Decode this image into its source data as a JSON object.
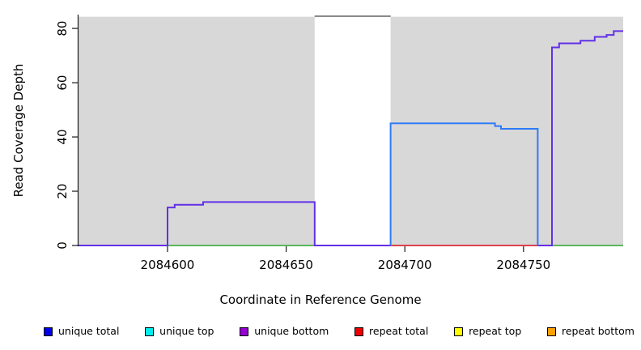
{
  "chart_data": {
    "type": "line",
    "subtype": "step-coverage-plot",
    "title": "",
    "xlabel": "Coordinate in Reference Genome",
    "ylabel": "Read Coverage Depth",
    "xlim": [
      2084562.5,
      2084792
    ],
    "ylim": [
      0,
      85.4
    ],
    "x_ticks": [
      {
        "value": 2084600,
        "label": "2084600"
      },
      {
        "value": 2084650,
        "label": "2084650"
      },
      {
        "value": 2084700,
        "label": "2084700"
      },
      {
        "value": 2084750,
        "label": "2084750"
      }
    ],
    "y_ticks": [
      {
        "value": 0,
        "label": "0"
      },
      {
        "value": 20,
        "label": "20"
      },
      {
        "value": 40,
        "label": "40"
      },
      {
        "value": 60,
        "label": "60"
      },
      {
        "value": 80,
        "label": "80"
      }
    ],
    "grid": false,
    "panel_bg": "#d8d8d8",
    "panel_y_max": 84.3,
    "axis_color": "#1a1a1a",
    "no_coverage_gap": {
      "x0": 2084662,
      "x1": 2084694,
      "fill": "#ffffff",
      "top_y": 84.5,
      "top_line_color": "#8a8a8a"
    },
    "series": [
      {
        "name": "baseline-left-green",
        "color": "#5cb85c",
        "points": [
          [
            2084600,
            0
          ],
          [
            2084662,
            0
          ]
        ]
      },
      {
        "name": "baseline-right-green",
        "color": "#5cb85c",
        "points": [
          [
            2084762,
            0
          ],
          [
            2084792,
            0
          ]
        ]
      },
      {
        "name": "unique-bottom-steps",
        "color": "#6130e8",
        "points": [
          [
            2084562.5,
            0
          ],
          [
            2084600,
            0
          ],
          [
            2084600,
            14
          ],
          [
            2084603,
            14
          ],
          [
            2084603,
            15
          ],
          [
            2084615,
            15
          ],
          [
            2084615,
            16
          ],
          [
            2084662,
            16
          ],
          [
            2084662,
            0
          ],
          [
            2084756,
            0
          ],
          [
            2084762,
            0
          ],
          [
            2084762,
            73
          ],
          [
            2084765,
            73
          ],
          [
            2084765,
            74.5
          ],
          [
            2084774,
            74.5
          ],
          [
            2084774,
            75.5
          ],
          [
            2084780,
            75.5
          ],
          [
            2084780,
            76.9
          ],
          [
            2084785,
            76.9
          ],
          [
            2084785,
            77.6
          ],
          [
            2084788,
            77.6
          ],
          [
            2084788,
            79
          ],
          [
            2084792,
            79
          ]
        ]
      },
      {
        "name": "repeat-total-baseline",
        "color": "#dd424d",
        "points": [
          [
            2084694,
            0
          ],
          [
            2084756,
            0
          ]
        ]
      },
      {
        "name": "unique-total-plateau",
        "color": "#2e7bf6",
        "points": [
          [
            2084694,
            0
          ],
          [
            2084694,
            45
          ],
          [
            2084738,
            45
          ],
          [
            2084738,
            44
          ],
          [
            2084740.5,
            44
          ],
          [
            2084740.5,
            43
          ],
          [
            2084756,
            43
          ],
          [
            2084756,
            0
          ]
        ]
      },
      {
        "name": "clipped-coverage-top",
        "color": "#8a8a8a",
        "points": [
          [
            2084662,
            84.5
          ],
          [
            2084694,
            84.5
          ]
        ]
      }
    ],
    "legend": {
      "position": "bottom",
      "items": [
        {
          "label": "unique total",
          "color": "#0000ee"
        },
        {
          "label": "unique top",
          "color": "#00eeee"
        },
        {
          "label": "unique bottom",
          "color": "#9400d3"
        },
        {
          "label": "repeat total",
          "color": "#ee0000"
        },
        {
          "label": "repeat top",
          "color": "#ffff00"
        },
        {
          "label": "repeat bottom",
          "color": "#ffa000"
        }
      ]
    }
  }
}
